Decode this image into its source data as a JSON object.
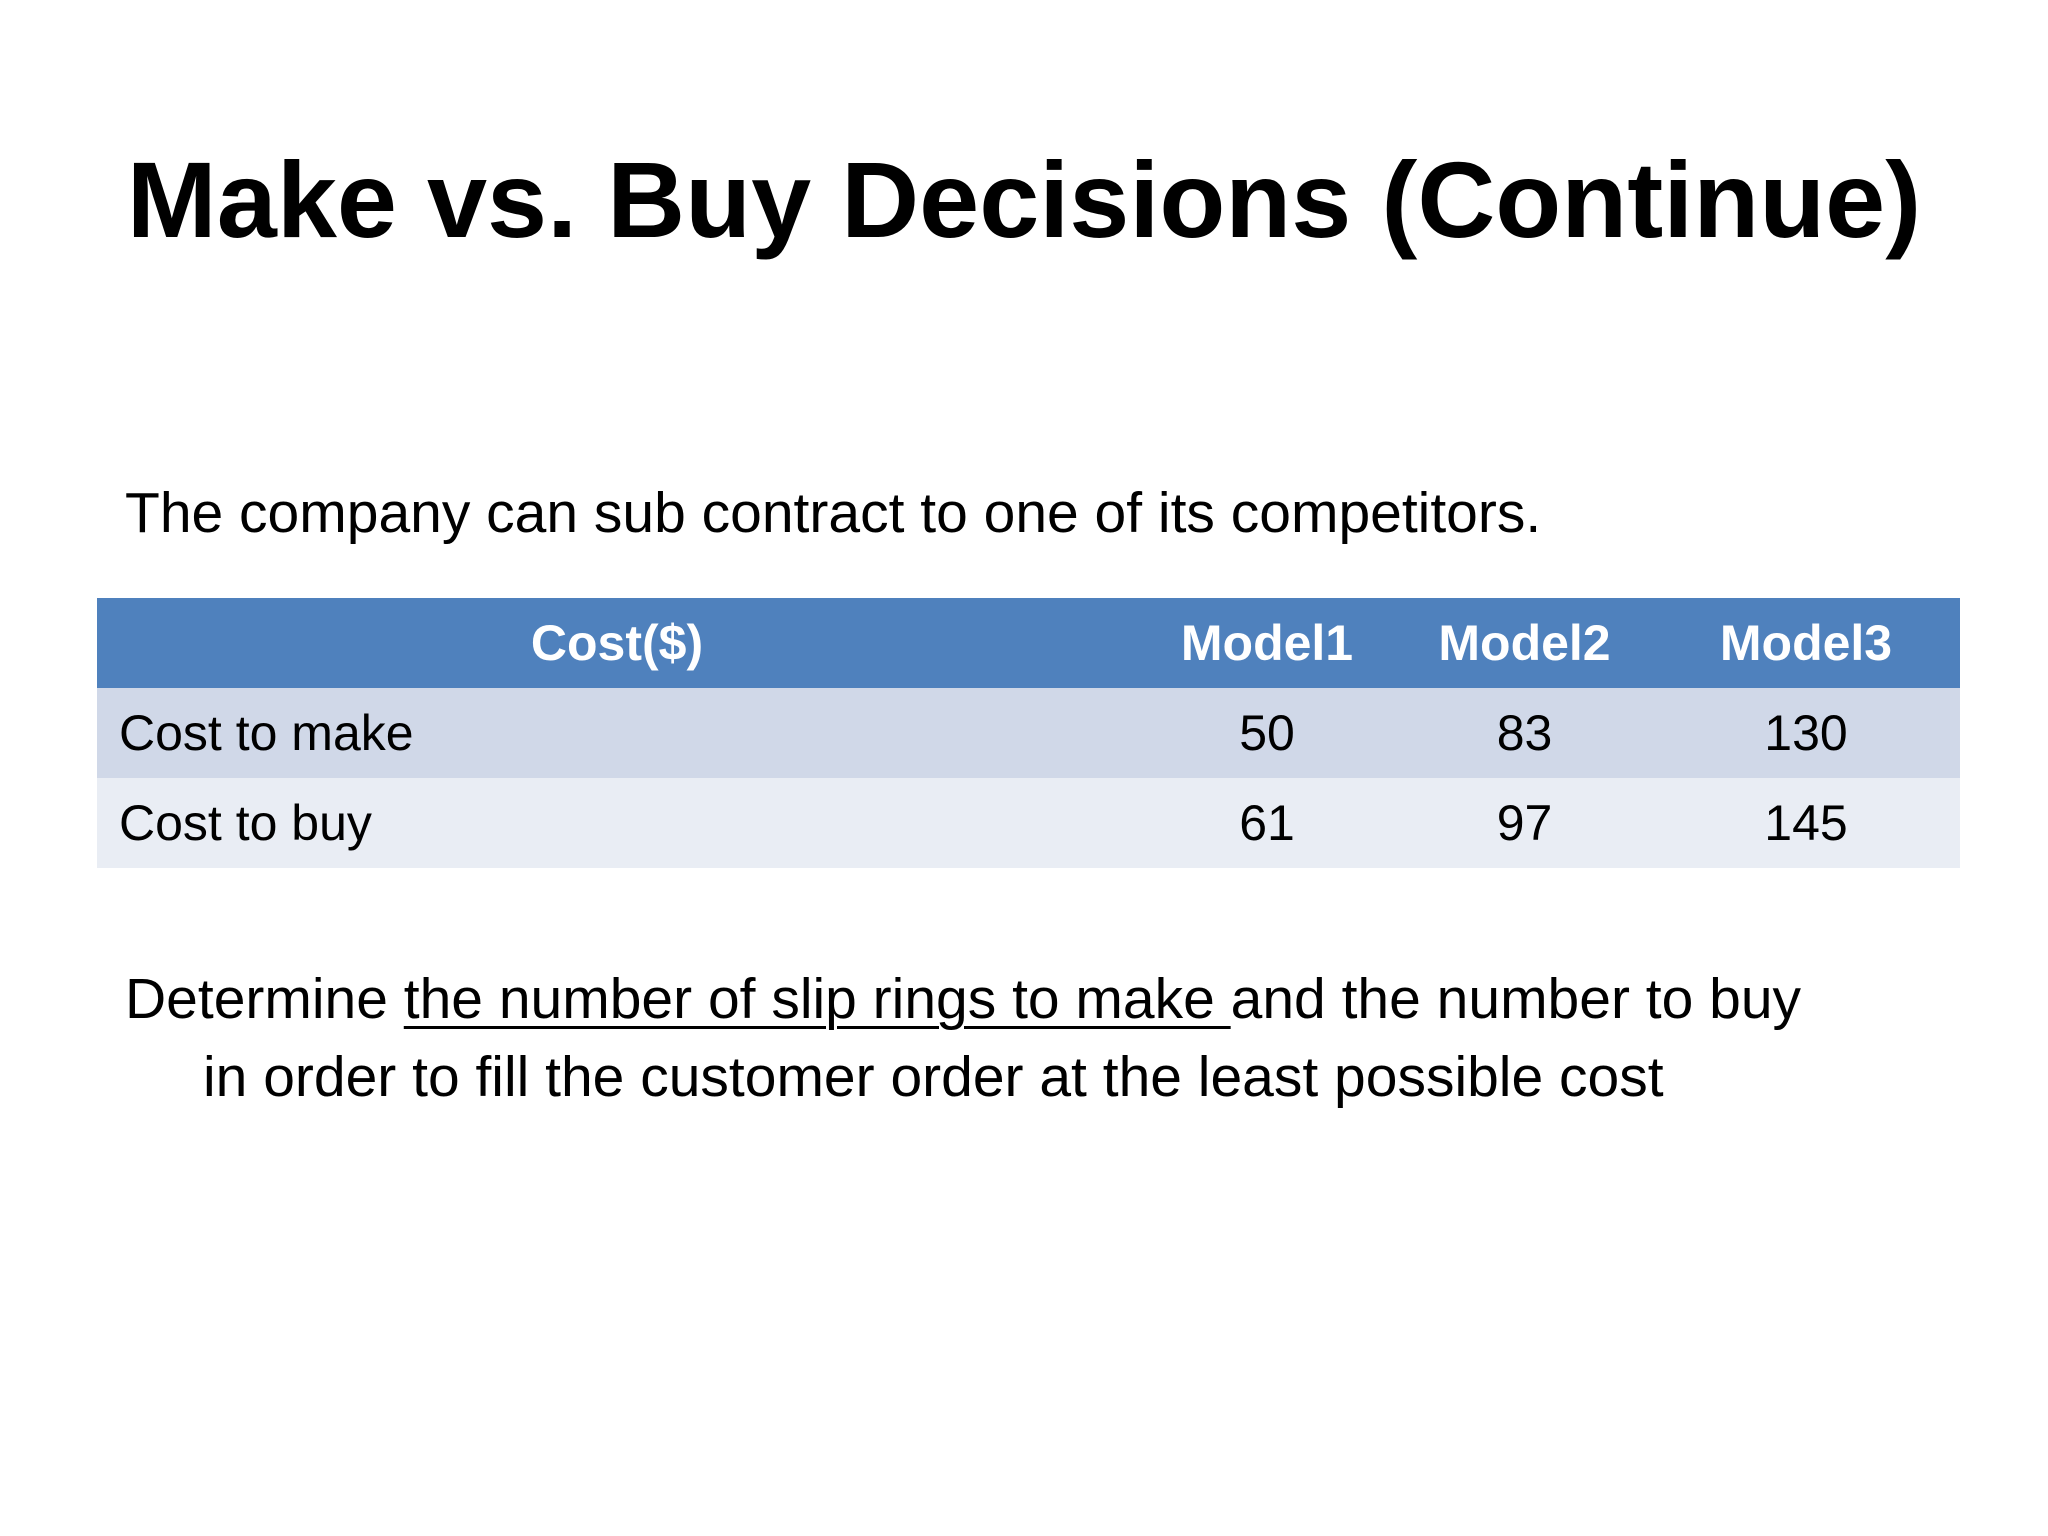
{
  "title": "Make vs. Buy Decisions (Continue)",
  "intro": "The company can sub contract to one of its competitors.",
  "table": {
    "headers": [
      "Cost($)",
      "Model1",
      "Model2",
      "Model3"
    ],
    "rows": [
      {
        "label": "Cost to make",
        "values": [
          "50",
          "83",
          "130"
        ]
      },
      {
        "label": "Cost to buy",
        "values": [
          "61",
          "97",
          "145"
        ]
      }
    ],
    "colors": {
      "header": "#4f81bd",
      "row_a": "#d0d8e8",
      "row_b": "#e9edf4"
    }
  },
  "paragraph": {
    "prefix": "Determine ",
    "underlined": "the number of slip rings to make ",
    "suffix": "and the number to buy",
    "line2": "in order to fill the customer order at the least possible cost"
  }
}
